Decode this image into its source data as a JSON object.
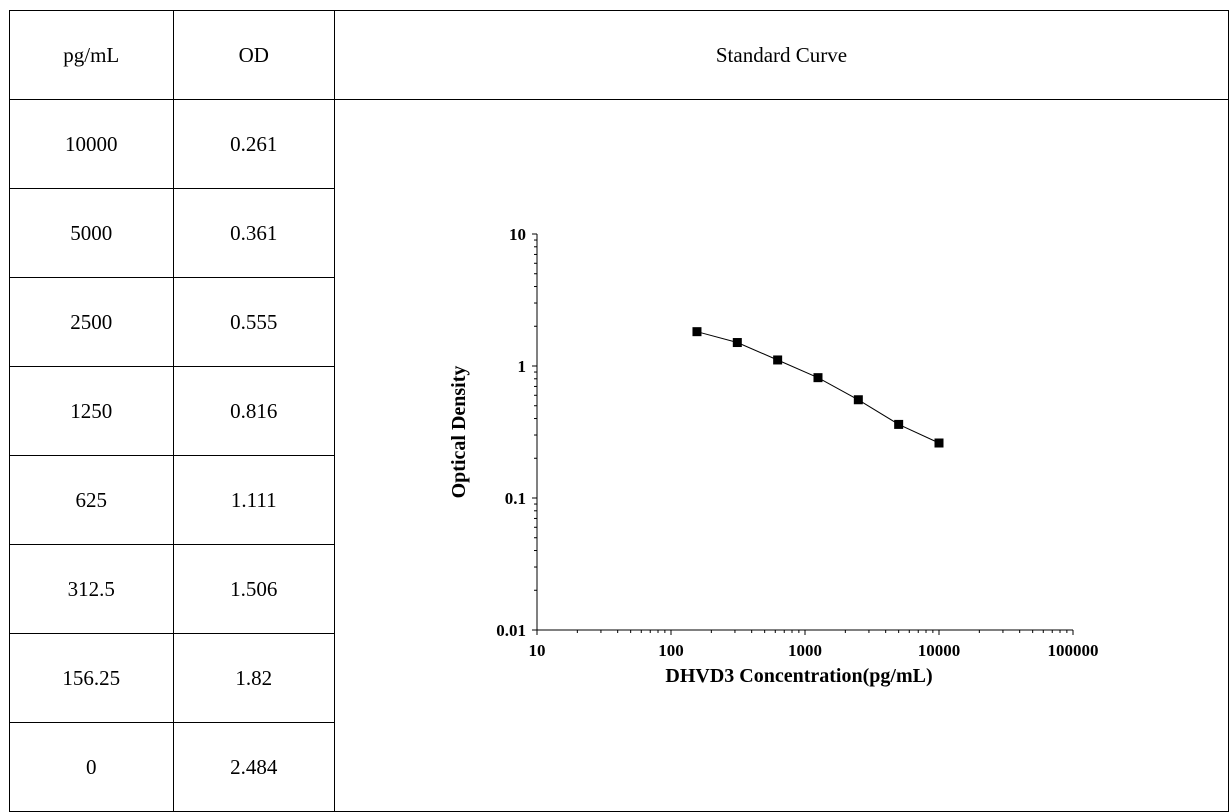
{
  "table": {
    "headers": [
      "pg/mL",
      "OD",
      "Standard Curve"
    ],
    "rows": [
      {
        "conc": "10000",
        "od": "0.261"
      },
      {
        "conc": "5000",
        "od": "0.361"
      },
      {
        "conc": "2500",
        "od": "0.555"
      },
      {
        "conc": "1250",
        "od": "0.816"
      },
      {
        "conc": "625",
        "od": "1.111"
      },
      {
        "conc": "312.5",
        "od": "1.506"
      },
      {
        "conc": "156.25",
        "od": "1.82"
      },
      {
        "conc": "0",
        "od": "2.484"
      }
    ]
  },
  "chart_data": {
    "type": "scatter",
    "title": "",
    "xlabel": "DHVD3 Concentration(pg/mL)",
    "ylabel": "Optical Density",
    "x_scale": "log",
    "y_scale": "log",
    "xlim": [
      10,
      100000
    ],
    "ylim": [
      0.01,
      10
    ],
    "x_ticks": [
      "10",
      "100",
      "1000",
      "10000",
      "100000"
    ],
    "y_ticks": [
      "0.01",
      "0.1",
      "1",
      "10"
    ],
    "grid": false,
    "legend": "none",
    "series": [
      {
        "x": [
          156.25,
          312.5,
          625,
          1250,
          2500,
          5000,
          10000
        ],
        "y": [
          1.82,
          1.506,
          1.111,
          0.816,
          0.555,
          0.361,
          0.261
        ],
        "marker": "square",
        "connected": true,
        "color": "#000000"
      }
    ]
  }
}
